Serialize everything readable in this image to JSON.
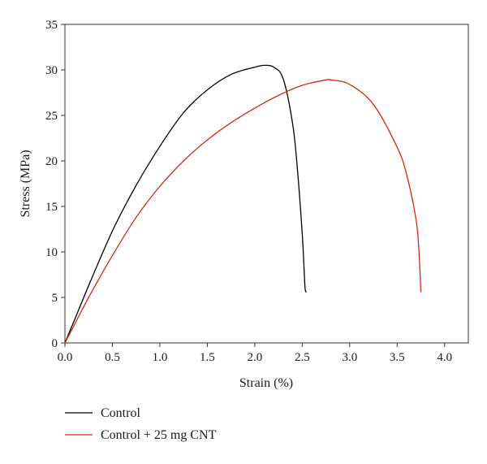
{
  "chart_data": {
    "type": "line",
    "xlabel": "Strain (%)",
    "ylabel": "Stress (MPa)",
    "xlim": [
      0,
      4.25
    ],
    "ylim": [
      0,
      35
    ],
    "xticks": [
      0.0,
      0.5,
      1.0,
      1.5,
      2.0,
      2.5,
      3.0,
      3.5,
      4.0
    ],
    "xtick_labels": [
      "0.0",
      "0.5",
      "1.0",
      "1.5",
      "2.0",
      "2.5",
      "3.0",
      "3.5",
      "4.0"
    ],
    "yticks": [
      0,
      5,
      10,
      15,
      20,
      25,
      30,
      35
    ],
    "ytick_labels": [
      "0",
      "5",
      "10",
      "15",
      "20",
      "25",
      "30",
      "35"
    ],
    "grid": false,
    "legend_position": "below",
    "series": [
      {
        "name": "Control",
        "color": "#000000",
        "x": [
          0,
          0.1,
          0.25,
          0.5,
          0.75,
          1.0,
          1.25,
          1.5,
          1.75,
          2.0,
          2.1,
          2.2,
          2.3,
          2.4,
          2.45,
          2.5,
          2.52,
          2.53,
          2.54
        ],
        "y": [
          0,
          2.5,
          6.3,
          12.3,
          17.3,
          21.6,
          25.3,
          27.8,
          29.5,
          30.3,
          30.5,
          30.3,
          29.0,
          24.0,
          19.0,
          12.0,
          8.0,
          6.0,
          5.6
        ]
      },
      {
        "name": "Control + 25 mg CNT",
        "color": "#d42a0b",
        "x": [
          0,
          0.1,
          0.25,
          0.5,
          0.75,
          1.0,
          1.25,
          1.5,
          1.75,
          2.0,
          2.25,
          2.5,
          2.75,
          2.8,
          3.0,
          3.25,
          3.5,
          3.6,
          3.7,
          3.73,
          3.75
        ],
        "y": [
          0,
          2.0,
          5.0,
          9.6,
          13.8,
          17.2,
          20.0,
          22.3,
          24.2,
          25.8,
          27.2,
          28.3,
          28.9,
          28.9,
          28.4,
          26.2,
          21.5,
          18.5,
          13.5,
          10.0,
          5.6
        ]
      }
    ]
  }
}
